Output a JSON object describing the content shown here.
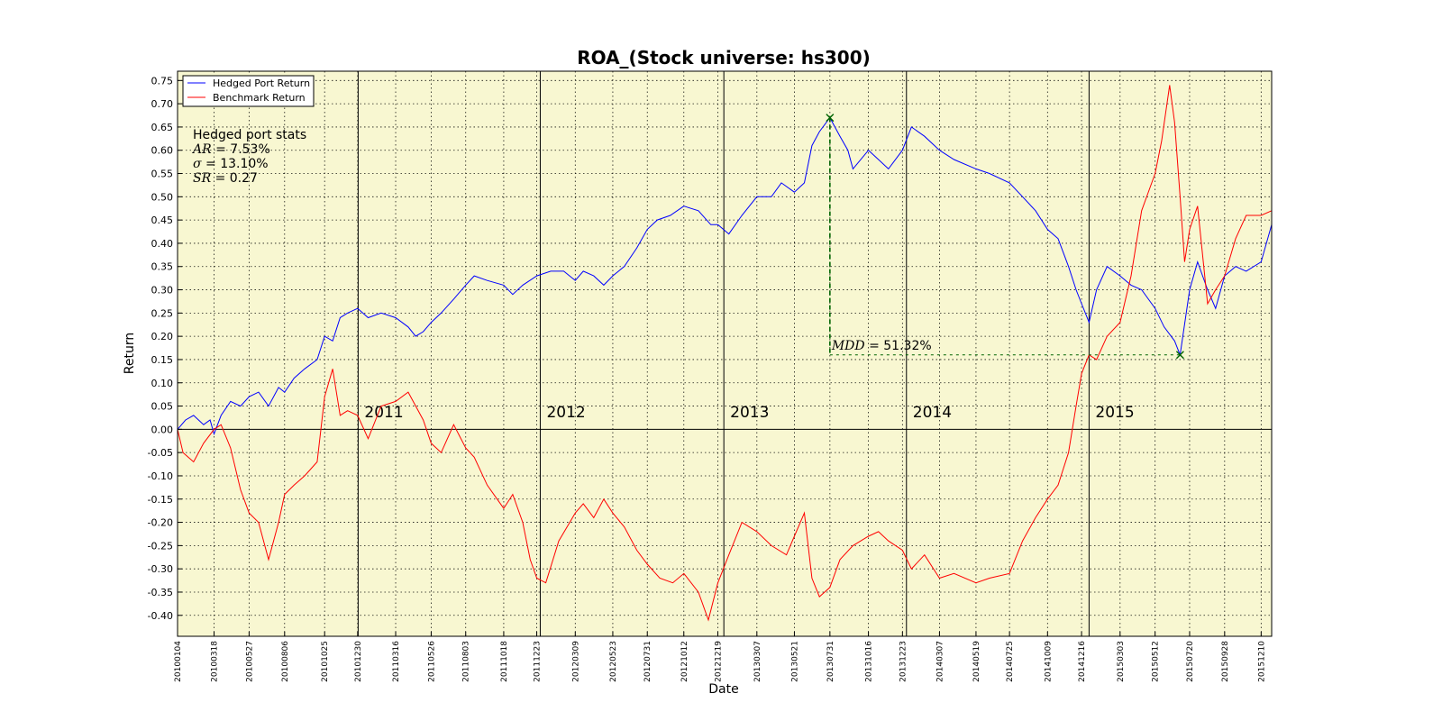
{
  "chart_data": {
    "type": "line",
    "title": "ROA_(Stock universe: hs300)",
    "xlabel": "Date",
    "ylabel": "Return",
    "ylim": [
      -0.445,
      0.77
    ],
    "yticks": [
      -0.4,
      -0.35,
      -0.3,
      -0.25,
      -0.2,
      -0.15,
      -0.1,
      -0.05,
      0.0,
      0.05,
      0.1,
      0.15,
      0.2,
      0.25,
      0.3,
      0.35,
      0.4,
      0.45,
      0.5,
      0.55,
      0.6,
      0.65,
      0.7,
      0.75
    ],
    "ytick_labels": [
      "-0.40",
      "-0.35",
      "-0.30",
      "-0.25",
      "-0.20",
      "-0.15",
      "-0.10",
      "-0.05",
      "0.00",
      "0.05",
      "0.10",
      "0.15",
      "0.20",
      "0.25",
      "0.30",
      "0.35",
      "0.40",
      "0.45",
      "0.50",
      "0.55",
      "0.60",
      "0.65",
      "0.70",
      "0.75"
    ],
    "x_range": [
      "2010-01-04",
      "2015-12-31"
    ],
    "xticks": [
      "20100104",
      "20100318",
      "20100527",
      "20100806",
      "20101025",
      "20101230",
      "20110316",
      "20110526",
      "20110803",
      "20111018",
      "20111223",
      "20120309",
      "20120523",
      "20120731",
      "20121012",
      "20121219",
      "20130307",
      "20130521",
      "20130731",
      "20131016",
      "20131223",
      "20140307",
      "20140519",
      "20140725",
      "20141009",
      "20141216",
      "20150303",
      "20150512",
      "20150720",
      "20150928",
      "20151210"
    ],
    "grid": true,
    "background": "#f8f7d1",
    "legend_placement": "top-left",
    "year_markers": [
      {
        "date": "2010-12-31",
        "label": "2011"
      },
      {
        "date": "2011-12-30",
        "label": "2012"
      },
      {
        "date": "2012-12-31",
        "label": "2013"
      },
      {
        "date": "2013-12-31",
        "label": "2014"
      },
      {
        "date": "2014-12-31",
        "label": "2015"
      }
    ],
    "series": [
      {
        "name": "Hedged Port Return",
        "color": "#0000ff",
        "points": [
          [
            "2010-01-04",
            0.0
          ],
          [
            "2010-01-20",
            0.02
          ],
          [
            "2010-02-05",
            0.03
          ],
          [
            "2010-02-25",
            0.01
          ],
          [
            "2010-03-10",
            0.02
          ],
          [
            "2010-03-18",
            -0.01
          ],
          [
            "2010-04-01",
            0.03
          ],
          [
            "2010-04-20",
            0.06
          ],
          [
            "2010-05-10",
            0.05
          ],
          [
            "2010-05-27",
            0.07
          ],
          [
            "2010-06-15",
            0.08
          ],
          [
            "2010-07-05",
            0.05
          ],
          [
            "2010-07-25",
            0.09
          ],
          [
            "2010-08-06",
            0.08
          ],
          [
            "2010-08-25",
            0.11
          ],
          [
            "2010-09-15",
            0.13
          ],
          [
            "2010-10-10",
            0.15
          ],
          [
            "2010-10-25",
            0.2
          ],
          [
            "2010-11-10",
            0.19
          ],
          [
            "2010-11-25",
            0.24
          ],
          [
            "2010-12-10",
            0.25
          ],
          [
            "2010-12-30",
            0.26
          ],
          [
            "2011-01-20",
            0.24
          ],
          [
            "2011-02-15",
            0.25
          ],
          [
            "2011-03-16",
            0.24
          ],
          [
            "2011-04-10",
            0.22
          ],
          [
            "2011-04-25",
            0.2
          ],
          [
            "2011-05-10",
            0.21
          ],
          [
            "2011-05-26",
            0.23
          ],
          [
            "2011-06-15",
            0.25
          ],
          [
            "2011-07-10",
            0.28
          ],
          [
            "2011-08-03",
            0.31
          ],
          [
            "2011-08-20",
            0.33
          ],
          [
            "2011-09-15",
            0.32
          ],
          [
            "2011-10-18",
            0.31
          ],
          [
            "2011-11-05",
            0.29
          ],
          [
            "2011-11-25",
            0.31
          ],
          [
            "2011-12-23",
            0.33
          ],
          [
            "2012-01-20",
            0.34
          ],
          [
            "2012-02-15",
            0.34
          ],
          [
            "2012-03-09",
            0.32
          ],
          [
            "2012-03-25",
            0.34
          ],
          [
            "2012-04-15",
            0.33
          ],
          [
            "2012-05-05",
            0.31
          ],
          [
            "2012-05-23",
            0.33
          ],
          [
            "2012-06-15",
            0.35
          ],
          [
            "2012-07-10",
            0.39
          ],
          [
            "2012-07-31",
            0.43
          ],
          [
            "2012-08-20",
            0.45
          ],
          [
            "2012-09-15",
            0.46
          ],
          [
            "2012-10-12",
            0.48
          ],
          [
            "2012-11-10",
            0.47
          ],
          [
            "2012-12-05",
            0.44
          ],
          [
            "2012-12-19",
            0.44
          ],
          [
            "2013-01-10",
            0.42
          ],
          [
            "2013-02-05",
            0.46
          ],
          [
            "2013-03-07",
            0.5
          ],
          [
            "2013-04-05",
            0.5
          ],
          [
            "2013-04-25",
            0.53
          ],
          [
            "2013-05-21",
            0.51
          ],
          [
            "2013-06-10",
            0.53
          ],
          [
            "2013-06-25",
            0.61
          ],
          [
            "2013-07-10",
            0.64
          ],
          [
            "2013-07-31",
            0.67
          ],
          [
            "2013-08-20",
            0.63
          ],
          [
            "2013-09-05",
            0.6
          ],
          [
            "2013-09-15",
            0.56
          ],
          [
            "2013-10-16",
            0.6
          ],
          [
            "2013-11-05",
            0.58
          ],
          [
            "2013-11-25",
            0.56
          ],
          [
            "2013-12-23",
            0.6
          ],
          [
            "2014-01-10",
            0.65
          ],
          [
            "2014-02-05",
            0.63
          ],
          [
            "2014-03-07",
            0.6
          ],
          [
            "2014-04-05",
            0.58
          ],
          [
            "2014-05-19",
            0.56
          ],
          [
            "2014-06-15",
            0.55
          ],
          [
            "2014-07-25",
            0.53
          ],
          [
            "2014-08-20",
            0.5
          ],
          [
            "2014-09-15",
            0.47
          ],
          [
            "2014-10-09",
            0.43
          ],
          [
            "2014-10-30",
            0.41
          ],
          [
            "2014-11-20",
            0.35
          ],
          [
            "2014-12-05",
            0.3
          ],
          [
            "2014-12-16",
            0.27
          ],
          [
            "2014-12-31",
            0.23
          ],
          [
            "2015-01-15",
            0.3
          ],
          [
            "2015-02-05",
            0.35
          ],
          [
            "2015-03-03",
            0.33
          ],
          [
            "2015-03-25",
            0.31
          ],
          [
            "2015-04-15",
            0.3
          ],
          [
            "2015-05-12",
            0.26
          ],
          [
            "2015-05-30",
            0.22
          ],
          [
            "2015-06-20",
            0.19
          ],
          [
            "2015-07-01",
            0.16
          ],
          [
            "2015-07-20",
            0.3
          ],
          [
            "2015-08-05",
            0.36
          ],
          [
            "2015-08-25",
            0.3
          ],
          [
            "2015-09-10",
            0.26
          ],
          [
            "2015-09-28",
            0.33
          ],
          [
            "2015-10-20",
            0.35
          ],
          [
            "2015-11-10",
            0.34
          ],
          [
            "2015-12-10",
            0.36
          ],
          [
            "2015-12-31",
            0.44
          ]
        ]
      },
      {
        "name": "Benchmark Return",
        "color": "#ff0000",
        "points": [
          [
            "2010-01-04",
            0.0
          ],
          [
            "2010-01-15",
            -0.05
          ],
          [
            "2010-02-05",
            -0.07
          ],
          [
            "2010-02-25",
            -0.03
          ],
          [
            "2010-03-18",
            0.0
          ],
          [
            "2010-04-01",
            0.01
          ],
          [
            "2010-04-20",
            -0.04
          ],
          [
            "2010-05-10",
            -0.13
          ],
          [
            "2010-05-27",
            -0.18
          ],
          [
            "2010-06-15",
            -0.2
          ],
          [
            "2010-07-05",
            -0.28
          ],
          [
            "2010-07-25",
            -0.2
          ],
          [
            "2010-08-06",
            -0.14
          ],
          [
            "2010-08-25",
            -0.12
          ],
          [
            "2010-09-15",
            -0.1
          ],
          [
            "2010-10-10",
            -0.07
          ],
          [
            "2010-10-25",
            0.07
          ],
          [
            "2010-11-10",
            0.13
          ],
          [
            "2010-11-25",
            0.03
          ],
          [
            "2010-12-10",
            0.04
          ],
          [
            "2010-12-30",
            0.03
          ],
          [
            "2011-01-20",
            -0.02
          ],
          [
            "2011-02-15",
            0.05
          ],
          [
            "2011-03-16",
            0.06
          ],
          [
            "2011-04-10",
            0.08
          ],
          [
            "2011-05-10",
            0.02
          ],
          [
            "2011-05-26",
            -0.03
          ],
          [
            "2011-06-15",
            -0.05
          ],
          [
            "2011-07-10",
            0.01
          ],
          [
            "2011-08-03",
            -0.04
          ],
          [
            "2011-08-20",
            -0.06
          ],
          [
            "2011-09-15",
            -0.12
          ],
          [
            "2011-10-18",
            -0.17
          ],
          [
            "2011-11-05",
            -0.14
          ],
          [
            "2011-11-25",
            -0.2
          ],
          [
            "2011-12-10",
            -0.28
          ],
          [
            "2011-12-23",
            -0.32
          ],
          [
            "2012-01-10",
            -0.33
          ],
          [
            "2012-02-05",
            -0.24
          ],
          [
            "2012-03-09",
            -0.18
          ],
          [
            "2012-03-25",
            -0.16
          ],
          [
            "2012-04-15",
            -0.19
          ],
          [
            "2012-05-05",
            -0.15
          ],
          [
            "2012-05-23",
            -0.18
          ],
          [
            "2012-06-15",
            -0.21
          ],
          [
            "2012-07-10",
            -0.26
          ],
          [
            "2012-07-31",
            -0.29
          ],
          [
            "2012-08-25",
            -0.32
          ],
          [
            "2012-09-20",
            -0.33
          ],
          [
            "2012-10-12",
            -0.31
          ],
          [
            "2012-11-10",
            -0.35
          ],
          [
            "2012-11-30",
            -0.41
          ],
          [
            "2012-12-19",
            -0.33
          ],
          [
            "2013-01-10",
            -0.27
          ],
          [
            "2013-02-05",
            -0.2
          ],
          [
            "2013-03-07",
            -0.22
          ],
          [
            "2013-04-05",
            -0.25
          ],
          [
            "2013-05-05",
            -0.27
          ],
          [
            "2013-05-21",
            -0.23
          ],
          [
            "2013-06-10",
            -0.18
          ],
          [
            "2013-06-25",
            -0.32
          ],
          [
            "2013-07-10",
            -0.36
          ],
          [
            "2013-07-31",
            -0.34
          ],
          [
            "2013-08-20",
            -0.28
          ],
          [
            "2013-09-15",
            -0.25
          ],
          [
            "2013-10-16",
            -0.23
          ],
          [
            "2013-11-05",
            -0.22
          ],
          [
            "2013-11-25",
            -0.24
          ],
          [
            "2013-12-23",
            -0.26
          ],
          [
            "2014-01-10",
            -0.3
          ],
          [
            "2014-02-05",
            -0.27
          ],
          [
            "2014-03-07",
            -0.32
          ],
          [
            "2014-04-05",
            -0.31
          ],
          [
            "2014-05-19",
            -0.33
          ],
          [
            "2014-06-15",
            -0.32
          ],
          [
            "2014-07-25",
            -0.31
          ],
          [
            "2014-08-20",
            -0.24
          ],
          [
            "2014-09-15",
            -0.19
          ],
          [
            "2014-10-09",
            -0.15
          ],
          [
            "2014-10-30",
            -0.12
          ],
          [
            "2014-11-20",
            -0.05
          ],
          [
            "2014-12-05",
            0.05
          ],
          [
            "2014-12-16",
            0.12
          ],
          [
            "2014-12-31",
            0.16
          ],
          [
            "2015-01-15",
            0.15
          ],
          [
            "2015-02-05",
            0.2
          ],
          [
            "2015-03-03",
            0.23
          ],
          [
            "2015-03-25",
            0.33
          ],
          [
            "2015-04-15",
            0.47
          ],
          [
            "2015-05-12",
            0.55
          ],
          [
            "2015-05-25",
            0.62
          ],
          [
            "2015-06-10",
            0.74
          ],
          [
            "2015-06-20",
            0.66
          ],
          [
            "2015-07-01",
            0.5
          ],
          [
            "2015-07-10",
            0.36
          ],
          [
            "2015-07-20",
            0.43
          ],
          [
            "2015-08-05",
            0.48
          ],
          [
            "2015-08-25",
            0.27
          ],
          [
            "2015-09-10",
            0.3
          ],
          [
            "2015-09-28",
            0.33
          ],
          [
            "2015-10-20",
            0.41
          ],
          [
            "2015-11-10",
            0.46
          ],
          [
            "2015-12-10",
            0.46
          ],
          [
            "2015-12-31",
            0.47
          ]
        ]
      }
    ],
    "annotations": {
      "stats_title": "Hedged port stats",
      "ar_label": "AR = ",
      "ar_value": "7.53%",
      "sigma_label": "σ = ",
      "sigma_value": "13.10%",
      "sr_label": "SR = ",
      "sr_value": "0.27",
      "mdd_label": "MDD = ",
      "mdd_value": "51.32%",
      "mdd_peak": {
        "date": "2013-07-31",
        "value": 0.67
      },
      "mdd_trough": {
        "date": "2015-07-01",
        "value": 0.16
      },
      "mdd_color": "#006400"
    }
  }
}
